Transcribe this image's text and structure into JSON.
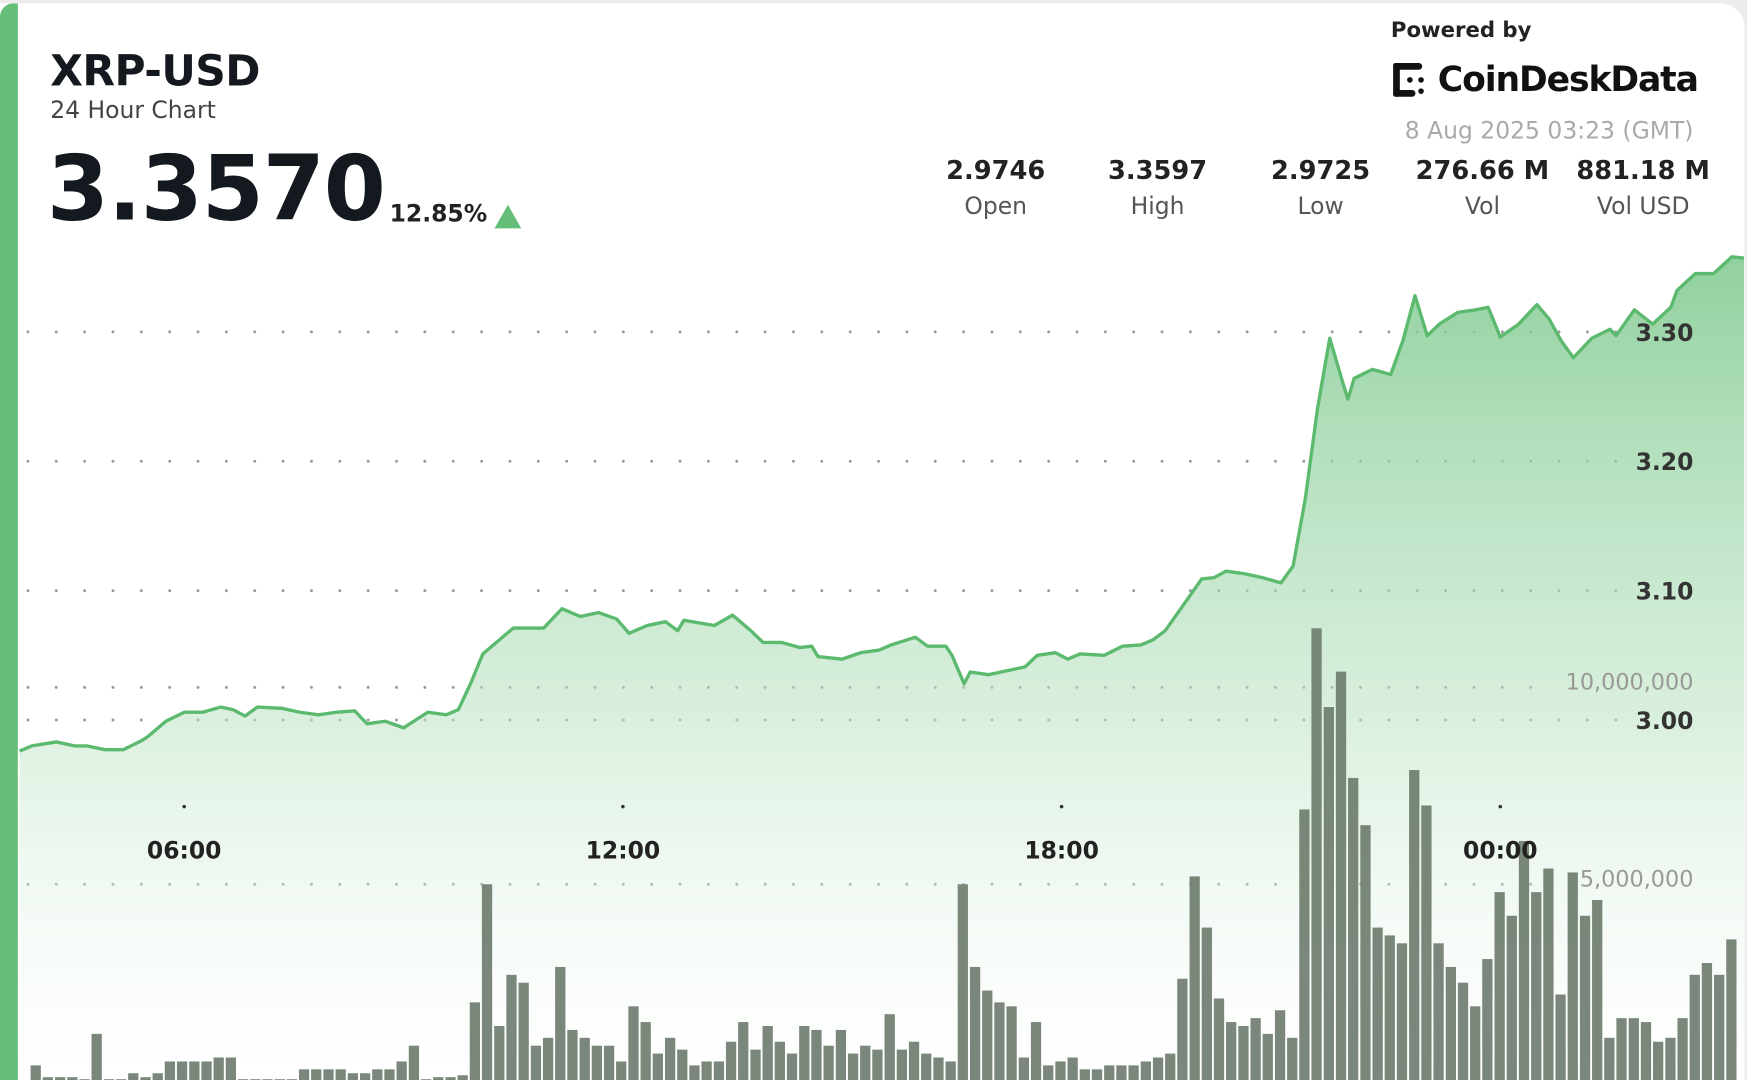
{
  "header": {
    "title": "XRP-USD",
    "subtitle": "24 Hour Chart",
    "price": "3.3570",
    "change": "12.85%",
    "change_direction": "up",
    "powered_by": "Powered by",
    "brand": "CoinDeskData",
    "timestamp": "8 Aug 2025 03:23 (GMT)"
  },
  "stats": [
    {
      "value": "2.9746",
      "label": "Open"
    },
    {
      "value": "3.3597",
      "label": "High"
    },
    {
      "value": "2.9725",
      "label": "Low"
    },
    {
      "value": "276.66 M",
      "label": "Vol"
    },
    {
      "value": "881.18 M",
      "label": "Vol USD"
    }
  ],
  "colors": {
    "accent": "#66bf78",
    "line": "#5cba6f",
    "area": "#7cc88c",
    "volume_bar": "#6b7a6b",
    "text": "#14181f"
  },
  "chart_data": [
    {
      "type": "area",
      "series_kind": "price",
      "x_ticks": [
        "06:00",
        "12:00",
        "18:00",
        "00:00"
      ],
      "y_ticks": [
        3.3,
        3.2,
        3.1,
        3.0
      ],
      "y_tick_labels": [
        "3.30",
        "3.20",
        "3.10",
        "3.00"
      ],
      "grid": true,
      "x": [
        "03:45",
        "03:55",
        "04:15",
        "04:30",
        "04:40",
        "04:55",
        "05:10",
        "05:25",
        "05:30",
        "05:45",
        "06:00",
        "06:15",
        "06:30",
        "06:40",
        "06:50",
        "07:00",
        "07:20",
        "07:35",
        "07:50",
        "08:05",
        "08:20",
        "08:30",
        "08:45",
        "09:00",
        "09:10",
        "09:20",
        "09:35",
        "09:45",
        "09:55",
        "10:05",
        "10:30",
        "10:55",
        "11:10",
        "11:25",
        "11:40",
        "11:55",
        "12:05",
        "12:20",
        "12:35",
        "12:45",
        "12:50",
        "13:15",
        "13:30",
        "13:45",
        "13:55",
        "14:10",
        "14:25",
        "14:35",
        "14:40",
        "15:00",
        "15:15",
        "15:30",
        "15:40",
        "16:00",
        "16:10",
        "16:25",
        "16:30",
        "16:40",
        "16:45",
        "17:00",
        "17:20",
        "17:30",
        "17:40",
        "17:55",
        "18:05",
        "18:15",
        "18:35",
        "18:50",
        "19:05",
        "19:15",
        "19:25",
        "19:40",
        "19:55",
        "20:05",
        "20:15",
        "20:30",
        "20:45",
        "21:00",
        "21:10",
        "21:20",
        "21:30",
        "21:40",
        "21:50",
        "21:55",
        "22:00",
        "22:15",
        "22:30",
        "22:40",
        "22:50",
        "23:00",
        "23:10",
        "23:25",
        "23:40",
        "23:50",
        "00:00",
        "00:15",
        "00:30",
        "00:40",
        "00:50",
        "01:00",
        "01:15",
        "01:30",
        "01:35",
        "01:50",
        "02:05",
        "02:20",
        "02:25",
        "02:40",
        "02:55",
        "03:10",
        "03:20"
      ],
      "y": [
        2.976,
        2.98,
        2.983,
        2.98,
        2.98,
        2.977,
        2.977,
        2.984,
        2.987,
        2.999,
        3.006,
        3.006,
        3.01,
        3.008,
        3.003,
        3.01,
        3.009,
        3.006,
        3.004,
        3.006,
        3.007,
        2.997,
        2.999,
        2.994,
        3.0,
        3.006,
        3.004,
        3.008,
        3.028,
        3.051,
        3.071,
        3.071,
        3.086,
        3.08,
        3.083,
        3.078,
        3.067,
        3.073,
        3.076,
        3.069,
        3.077,
        3.073,
        3.081,
        3.069,
        3.06,
        3.06,
        3.056,
        3.057,
        3.049,
        3.047,
        3.052,
        3.054,
        3.058,
        3.064,
        3.057,
        3.057,
        3.05,
        3.028,
        3.037,
        3.035,
        3.039,
        3.041,
        3.05,
        3.052,
        3.047,
        3.051,
        3.05,
        3.057,
        3.058,
        3.062,
        3.069,
        3.089,
        3.109,
        3.11,
        3.115,
        3.113,
        3.11,
        3.106,
        3.119,
        3.171,
        3.241,
        3.295,
        3.263,
        3.248,
        3.264,
        3.271,
        3.267,
        3.293,
        3.328,
        3.297,
        3.306,
        3.315,
        3.317,
        3.319,
        3.296,
        3.306,
        3.321,
        3.31,
        3.293,
        3.28,
        3.295,
        3.302,
        3.297,
        3.317,
        3.306,
        3.319,
        3.332,
        3.345,
        3.345,
        3.358,
        3.357
      ]
    },
    {
      "type": "bar",
      "series_kind": "volume",
      "y_ticks": [
        10000000,
        5000000
      ],
      "y_tick_labels": [
        "10,000,000",
        "5,000,000"
      ],
      "values": [
        400000,
        100000,
        100000,
        100000,
        50000,
        1200000,
        50000,
        50000,
        200000,
        100000,
        200000,
        500000,
        500000,
        500000,
        500000,
        600000,
        600000,
        50000,
        50000,
        50000,
        50000,
        50000,
        300000,
        300000,
        300000,
        300000,
        200000,
        200000,
        300000,
        300000,
        500000,
        900000,
        50000,
        100000,
        100000,
        150000,
        2000000,
        5000000,
        1400000,
        2700000,
        2500000,
        900000,
        1100000,
        2900000,
        1300000,
        1100000,
        900000,
        900000,
        500000,
        1900000,
        1500000,
        700000,
        1100000,
        800000,
        400000,
        500000,
        500000,
        1000000,
        1500000,
        800000,
        1400000,
        1000000,
        700000,
        1400000,
        1300000,
        900000,
        1300000,
        700000,
        900000,
        800000,
        1700000,
        800000,
        1000000,
        700000,
        600000,
        500000,
        5000000,
        2900000,
        2300000,
        2000000,
        1900000,
        600000,
        1500000,
        400000,
        500000,
        600000,
        300000,
        300000,
        400000,
        400000,
        400000,
        500000,
        600000,
        700000,
        2600000,
        5200000,
        3900000,
        2100000,
        1500000,
        1400000,
        1600000,
        1200000,
        1800000,
        1100000,
        6900000,
        11500000,
        9500000,
        10400000,
        7700000,
        6500000,
        3900000,
        3700000,
        3500000,
        7900000,
        7000000,
        3500000,
        2900000,
        2500000,
        1900000,
        3100000,
        4800000,
        4200000,
        6100000,
        4800000,
        5400000,
        2200000,
        5300000,
        4200000,
        4600000,
        1100000,
        1600000,
        1600000,
        1500000,
        1000000,
        1100000,
        1600000,
        2700000,
        3000000,
        2700000,
        3600000
      ]
    }
  ]
}
